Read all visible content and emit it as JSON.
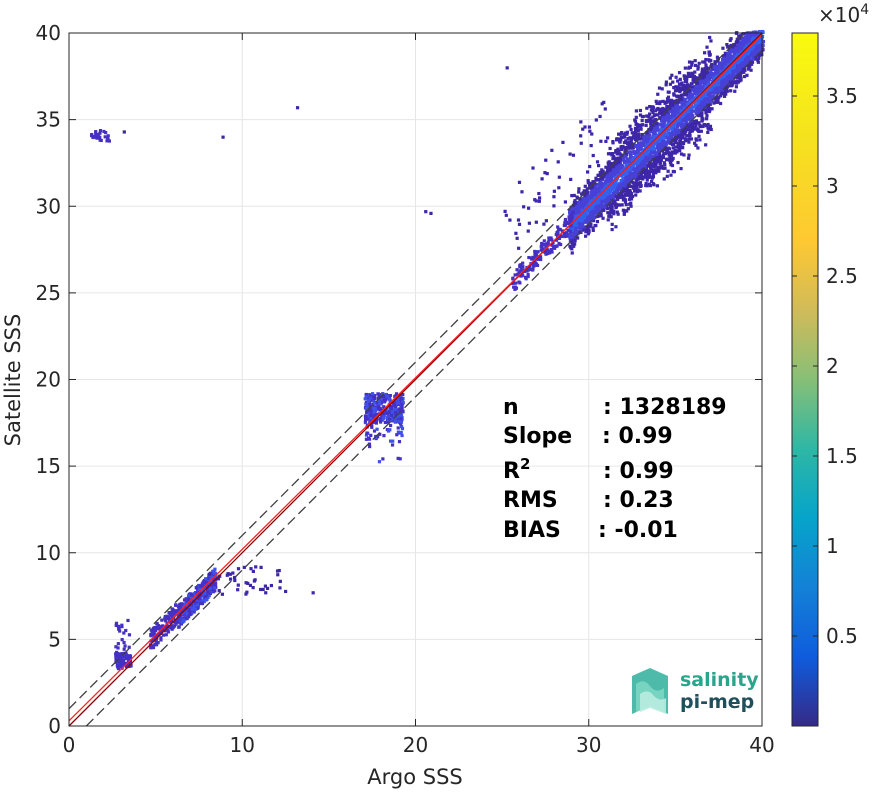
{
  "chart_data": {
    "type": "heatmap",
    "title": "",
    "xlabel": "Argo SSS",
    "ylabel": "Satellite SSS",
    "xlim": [
      0,
      40
    ],
    "ylim": [
      0,
      40
    ],
    "xticks": [
      "0",
      "10",
      "20",
      "30",
      "40"
    ],
    "yticks": [
      "0",
      "5",
      "10",
      "15",
      "20",
      "25",
      "30",
      "35",
      "40"
    ],
    "grid": true,
    "colormap": "parula",
    "colorbar": {
      "range": [
        0,
        38500
      ],
      "ticks": [
        "0.5",
        "1",
        "1.5",
        "2",
        "2.5",
        "3",
        "3.5"
      ],
      "tick_values": [
        5000,
        10000,
        15000,
        20000,
        25000,
        30000,
        35000
      ],
      "exponent_label": "×10",
      "exponent_power": "4"
    },
    "reference_lines": [
      {
        "name": "1:1",
        "slope": 1,
        "intercept": 0,
        "color": "#8b0000",
        "style": "solid"
      },
      {
        "name": "regression",
        "slope": 0.99,
        "intercept": 0.3,
        "color": "#ff2020",
        "style": "solid"
      },
      {
        "name": "+1",
        "slope": 1,
        "intercept": 1,
        "color": "#404040",
        "style": "dashed"
      },
      {
        "name": "-1",
        "slope": 1,
        "intercept": -1,
        "color": "#404040",
        "style": "dashed"
      }
    ],
    "density_clusters": [
      {
        "x_range": [
          28.5,
          40
        ],
        "y_range": [
          26,
          40
        ],
        "peak_density": "high"
      },
      {
        "x_range": [
          17,
          19.5
        ],
        "y_range": [
          14.5,
          19.2
        ],
        "peak_density": "medium"
      },
      {
        "x_range": [
          6,
          9.5
        ],
        "y_range": [
          4.5,
          9
        ],
        "peak_density": "medium"
      },
      {
        "x_range": [
          4.5,
          6
        ],
        "y_range": [
          4.8,
          6.8
        ],
        "peak_density": "low"
      },
      {
        "x_range": [
          2.5,
          3.5
        ],
        "y_range": [
          3,
          6.5
        ],
        "peak_density": "low"
      },
      {
        "x_range": [
          1.2,
          2.3
        ],
        "y_range": [
          33.6,
          34.3
        ],
        "peak_density": "low"
      }
    ],
    "stats": [
      {
        "label": "n",
        "value": ": 1328189"
      },
      {
        "label": "Slope",
        "value": ": 0.99"
      },
      {
        "label": "R",
        "label_sup": "2",
        "value": ": 0.99"
      },
      {
        "label": "RMS",
        "value": ": 0.23"
      },
      {
        "label": "BIAS",
        "value": ": -0.01"
      }
    ]
  },
  "logo": {
    "line1": "salinity",
    "line2": "pi-mep",
    "color1": "#2aa58c",
    "color2": "#1f4f5a"
  }
}
